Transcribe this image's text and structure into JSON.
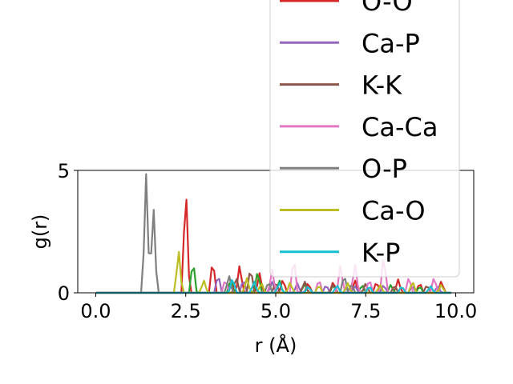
{
  "chart_data": {
    "type": "line",
    "xlabel": "r (Å)",
    "ylabel": "g(r)",
    "xlim": [
      -0.5,
      10.5
    ],
    "ylim": [
      0,
      5
    ],
    "xticks": [
      {
        "value": 0.0,
        "label": "0.0"
      },
      {
        "value": 2.5,
        "label": "2.5"
      },
      {
        "value": 5.0,
        "label": "5.0"
      },
      {
        "value": 7.5,
        "label": "7.5"
      },
      {
        "value": 10.0,
        "label": "10.0"
      }
    ],
    "yticks": [
      {
        "value": 0,
        "label": "0"
      },
      {
        "value": 5,
        "label": "5"
      }
    ],
    "grid": false,
    "legend_position": "upper-right",
    "series": [
      {
        "name": "O-O",
        "color": "#d62728",
        "legend": true,
        "peaks": [
          [
            2.5,
            4.7
          ],
          [
            3.25,
            1.45
          ],
          [
            4.0,
            1.2
          ],
          [
            4.55,
            0.8
          ],
          [
            5.2,
            0.6
          ],
          [
            5.9,
            0.45
          ],
          [
            6.6,
            0.5
          ],
          [
            7.2,
            0.55
          ],
          [
            7.8,
            0.5
          ],
          [
            8.4,
            0.55
          ],
          [
            9.0,
            0.45
          ],
          [
            9.6,
            0.5
          ]
        ]
      },
      {
        "name": "",
        "color": "#2ca02c",
        "legend": false,
        "peaks": [
          [
            2.7,
            1.4
          ],
          [
            3.75,
            0.6
          ],
          [
            4.5,
            0.95
          ],
          [
            5.1,
            0.55
          ],
          [
            5.8,
            0.4
          ],
          [
            6.6,
            0.35
          ],
          [
            7.4,
            0.35
          ],
          [
            8.2,
            0.35
          ],
          [
            9.0,
            0.3
          ]
        ]
      },
      {
        "name": "Ca-P",
        "color": "#9467bd",
        "legend": true,
        "peaks": [
          [
            3.4,
            0.8
          ],
          [
            4.1,
            0.6
          ],
          [
            4.9,
            0.45
          ],
          [
            5.6,
            0.4
          ],
          [
            6.4,
            0.35
          ],
          [
            7.2,
            0.3
          ],
          [
            8.0,
            0.35
          ],
          [
            8.8,
            0.3
          ],
          [
            9.5,
            0.3
          ]
        ]
      },
      {
        "name": "K-K",
        "color": "#8c564b",
        "legend": true,
        "peaks": [
          [
            3.9,
            0.7
          ],
          [
            4.3,
            1.1
          ],
          [
            5.0,
            0.5
          ],
          [
            5.8,
            0.5
          ],
          [
            6.6,
            0.4
          ],
          [
            7.5,
            0.4
          ],
          [
            8.3,
            0.35
          ],
          [
            9.2,
            0.35
          ]
        ]
      },
      {
        "name": "Ca-Ca",
        "color": "#e377c2",
        "legend": true,
        "peaks": [
          [
            3.6,
            0.6
          ],
          [
            4.9,
            0.95
          ],
          [
            5.5,
            1.6
          ],
          [
            6.2,
            0.6
          ],
          [
            6.8,
            1.2
          ],
          [
            7.2,
            1.25
          ],
          [
            7.6,
            0.6
          ],
          [
            8.0,
            1.65
          ],
          [
            8.7,
            0.7
          ],
          [
            9.4,
            0.7
          ]
        ]
      },
      {
        "name": "O-P",
        "color": "#7f7f7f",
        "legend": true,
        "peaks": [
          [
            1.4,
            4.85
          ],
          [
            1.6,
            3.75
          ],
          [
            3.7,
            0.75
          ],
          [
            4.8,
            0.5
          ],
          [
            6.9,
            0.8
          ],
          [
            7.1,
            0.4
          ]
        ]
      },
      {
        "name": "Ca-O",
        "color": "#bcbd22",
        "legend": true,
        "peaks": [
          [
            2.3,
            1.85
          ],
          [
            3.0,
            0.55
          ],
          [
            4.2,
            0.6
          ],
          [
            4.6,
            0.45
          ],
          [
            5.4,
            0.45
          ],
          [
            6.2,
            0.35
          ],
          [
            7.0,
            0.4
          ],
          [
            7.9,
            0.35
          ],
          [
            8.8,
            0.5
          ],
          [
            9.6,
            0.35
          ]
        ]
      },
      {
        "name": "K-P",
        "color": "#17becf",
        "legend": true,
        "peaks": [
          [
            3.8,
            0.65
          ],
          [
            4.4,
            0.5
          ],
          [
            5.1,
            0.45
          ],
          [
            5.9,
            0.3
          ],
          [
            6.7,
            0.35
          ],
          [
            7.6,
            0.3
          ],
          [
            8.5,
            0.3
          ],
          [
            9.3,
            0.3
          ]
        ]
      }
    ]
  }
}
